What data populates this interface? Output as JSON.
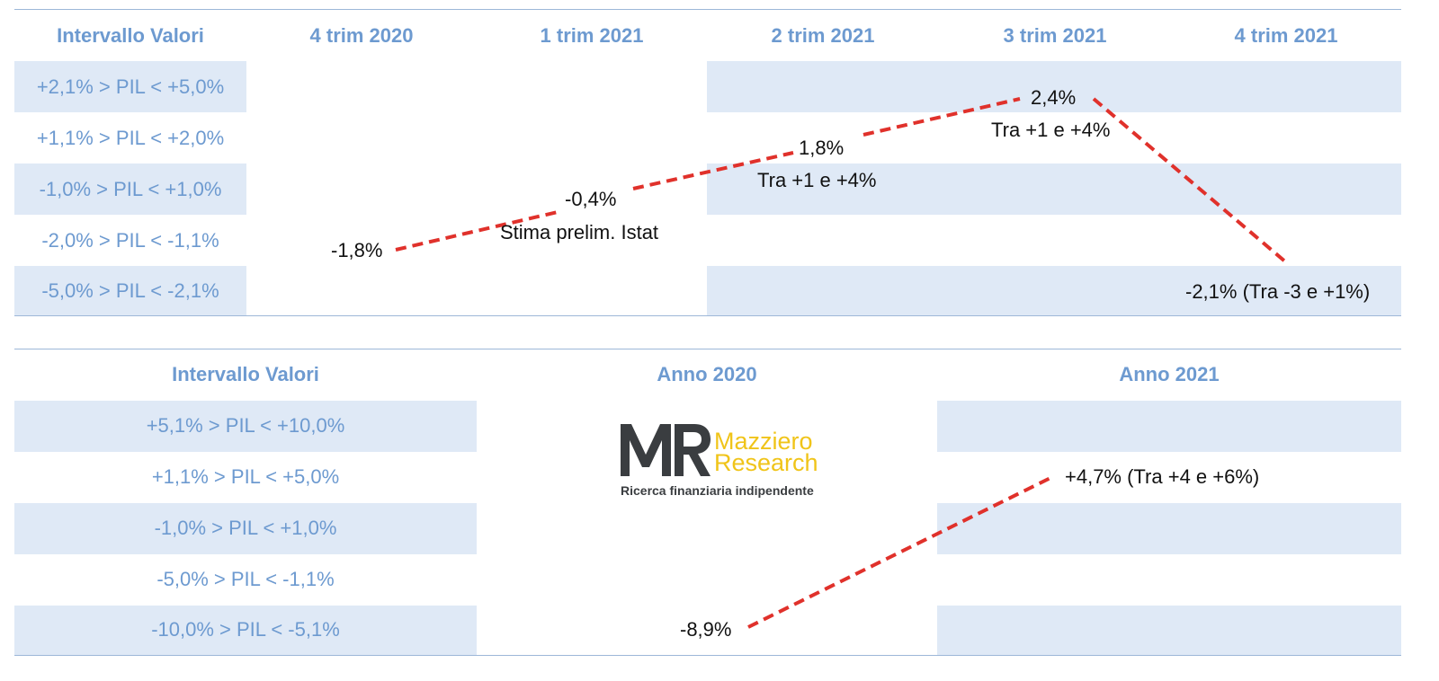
{
  "chart_data": [
    {
      "type": "line",
      "header": {
        "range_label": "Intervallo Valori",
        "columns": [
          "4 trim 2020",
          "1 trim 2021",
          "2 trim 2021",
          "3 trim 2021",
          "4 trim 2021"
        ]
      },
      "ranges": [
        "+2,1% > PIL < +5,0%",
        "+1,1% > PIL < +2,0%",
        "-1,0% > PIL < +1,0%",
        "-2,0% > PIL < -1,1%",
        "-5,0% > PIL < -2,1%"
      ],
      "points": [
        {
          "x": "4 trim 2020",
          "value": -1.8,
          "label": "-1,8%",
          "note": ""
        },
        {
          "x": "1 trim 2021",
          "value": -0.4,
          "label": "-0,4%",
          "note": "Stima prelim. Istat"
        },
        {
          "x": "2 trim 2021",
          "value": 1.8,
          "label": "1,8%",
          "note": "Tra +1 e +4%"
        },
        {
          "x": "3 trim 2021",
          "value": 2.4,
          "label": "2,4%",
          "note": "Tra +1 e +4%"
        },
        {
          "x": "4 trim 2021",
          "value": -2.1,
          "label": "-2,1% (Tra -3 e +1%)",
          "note": ""
        }
      ],
      "line_color": "#e0312b"
    },
    {
      "type": "line",
      "header": {
        "range_label": "Intervallo Valori",
        "columns": [
          "Anno 2020",
          "Anno 2021"
        ]
      },
      "ranges": [
        "+5,1% > PIL < +10,0%",
        "+1,1% > PIL < +5,0%",
        "-1,0% > PIL < +1,0%",
        "-5,0% > PIL < -1,1%",
        "-10,0% > PIL < -5,1%"
      ],
      "points": [
        {
          "x": "Anno 2020",
          "value": -8.9,
          "label": "-8,9%",
          "note": ""
        },
        {
          "x": "Anno 2021",
          "value": 4.7,
          "label": "+4,7% (Tra +4 e +6%)",
          "note": ""
        }
      ],
      "line_color": "#e0312b"
    }
  ],
  "logo": {
    "mark": "MR",
    "brand_line1": "Mazziero",
    "brand_line2": "Research",
    "tagline": "Ricerca finanziaria indipendente"
  },
  "colors": {
    "band": "#dfe9f6",
    "header_text": "#6d9ad0",
    "rule": "#9db7d8",
    "logo_gray": "#3a3d40",
    "logo_yellow": "#f0c419"
  }
}
